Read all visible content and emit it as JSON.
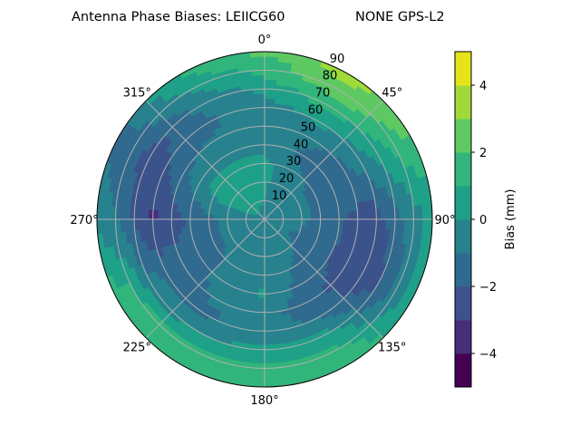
{
  "chart_data": {
    "type": "heatmap",
    "subtype": "polar-contour",
    "title_left": "Antenna Phase Biases: LEIICG60",
    "title_right": "NONE GPS-L2",
    "colorbar_label": "Bias (mm)",
    "colorbar_ticks": [
      "4",
      "2",
      "0",
      "−2",
      "−4"
    ],
    "colorbar_tick_values": [
      4,
      2,
      0,
      -2,
      -4
    ],
    "levels": [
      -5,
      -4,
      -3,
      -2,
      -1,
      0,
      1,
      2,
      3,
      4,
      5
    ],
    "level_colors": [
      "#440154",
      "#472d7b",
      "#3b528b",
      "#306a8e",
      "#27828e",
      "#1fa088",
      "#31b57b",
      "#5ec962",
      "#a0da39",
      "#e5e419"
    ],
    "colormap": "viridis",
    "angular_direction": "clockwise",
    "angular_zero": "north",
    "angle_labels": [
      "0°",
      "45°",
      "90°",
      "135°",
      "180°",
      "225°",
      "270°",
      "315°"
    ],
    "radial_labels": [
      "10",
      "20",
      "30",
      "40",
      "50",
      "60",
      "70",
      "80",
      "90"
    ],
    "radial_range": [
      0,
      90
    ],
    "grid": true,
    "azimuth_deg": [
      0,
      30,
      60,
      90,
      120,
      150,
      180,
      210,
      240,
      270,
      300,
      330
    ],
    "zenith_deg": [
      0,
      10,
      20,
      30,
      40,
      50,
      60,
      70,
      80,
      90
    ],
    "bias_mm": [
      [
        -0.3,
        0.0,
        0.2,
        0.3,
        -0.3,
        -0.5,
        -0.5,
        0.3,
        1.3,
        2.2
      ],
      [
        -0.3,
        -0.5,
        -0.6,
        -0.8,
        -1.2,
        -0.8,
        0.2,
        1.5,
        2.8,
        3.4
      ],
      [
        -0.3,
        -0.5,
        -0.8,
        -1.2,
        -1.5,
        -1.2,
        -0.5,
        0.5,
        1.5,
        2.2
      ],
      [
        -0.3,
        -0.5,
        -0.8,
        -1.3,
        -1.8,
        -2.3,
        -2.5,
        -1.5,
        -0.5,
        0.3
      ],
      [
        -0.3,
        -0.8,
        -1.2,
        -1.5,
        -2.0,
        -2.5,
        -2.7,
        -2.2,
        -0.8,
        0.5
      ],
      [
        -0.3,
        -0.5,
        -0.7,
        -1.0,
        -1.5,
        -1.8,
        -1.2,
        0.2,
        1.2,
        2.0
      ],
      [
        -0.3,
        -0.3,
        -0.5,
        -0.5,
        0.2,
        -0.5,
        -0.5,
        0.3,
        1.3,
        1.5
      ],
      [
        -0.3,
        -0.3,
        -0.5,
        -0.8,
        -0.5,
        -0.8,
        -1.2,
        0.0,
        1.2,
        1.6
      ],
      [
        -0.3,
        -0.5,
        -0.8,
        -1.2,
        -1.5,
        -1.5,
        -1.2,
        -0.5,
        1.2,
        1.6
      ],
      [
        -0.3,
        -0.5,
        -0.8,
        -1.2,
        -1.8,
        -2.5,
        -3.2,
        -2.2,
        -1.0,
        -0.3
      ],
      [
        -0.3,
        0.3,
        0.5,
        0.3,
        -0.5,
        -1.2,
        -2.2,
        -2.5,
        -1.5,
        -1.2
      ],
      [
        -0.3,
        0.2,
        0.5,
        0.3,
        -0.3,
        -0.8,
        -1.2,
        -0.8,
        0.2,
        1.2
      ]
    ]
  }
}
